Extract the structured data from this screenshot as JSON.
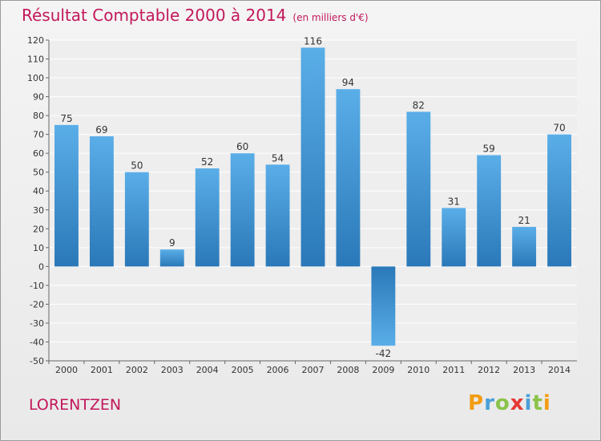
{
  "title": "Résultat Comptable 2000 à 2014",
  "subtitle": "(en milliers d'€)",
  "city": "LORENTZEN",
  "logo": "Proxiti",
  "colors": {
    "title": "#c2185b",
    "bar_top": "#5aaee8",
    "bar_bottom": "#2a78b8",
    "grid": "#ffffff",
    "axis": "#666666",
    "logo_letters": [
      "#f39c12",
      "#4a9fd8",
      "#8bc34a",
      "#e53935",
      "#4a9fd8",
      "#8bc34a",
      "#f39c12"
    ]
  },
  "chart_data": {
    "type": "bar",
    "title": "Résultat Comptable 2000 à 2014",
    "xlabel": "",
    "ylabel": "",
    "categories": [
      "2000",
      "2001",
      "2002",
      "2003",
      "2004",
      "2005",
      "2006",
      "2007",
      "2008",
      "2009",
      "2010",
      "2011",
      "2012",
      "2013",
      "2014"
    ],
    "values": [
      75,
      69,
      50,
      9,
      52,
      60,
      54,
      116,
      94,
      -42,
      82,
      31,
      59,
      21,
      70
    ],
    "ylim": [
      -50,
      120
    ],
    "yticks": [
      -50,
      -40,
      -30,
      -20,
      -10,
      0,
      10,
      20,
      30,
      40,
      50,
      60,
      70,
      80,
      90,
      100,
      110,
      120
    ],
    "grid": true
  }
}
